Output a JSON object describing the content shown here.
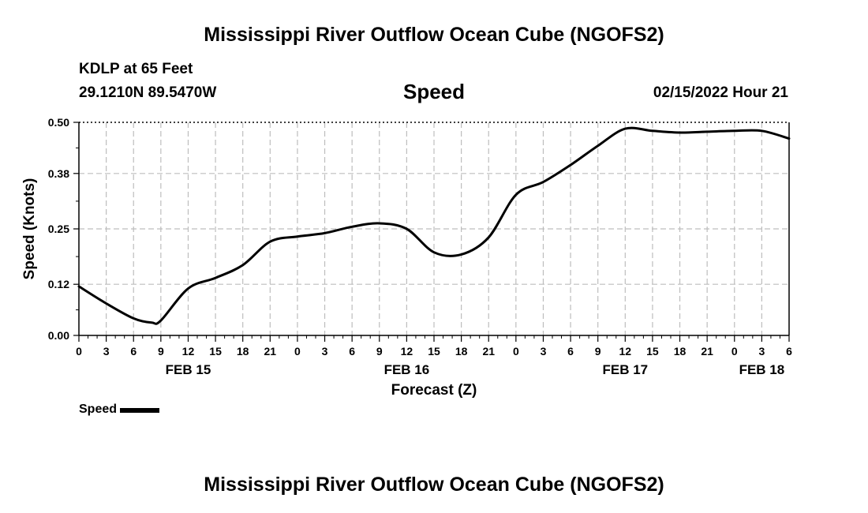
{
  "header": {
    "title": "Mississippi River Outflow Ocean Cube (NGOFS2)",
    "station": "KDLP at 65 Feet",
    "coordinates": "29.1210N  89.5470W",
    "parameter": "Speed",
    "run_time": "02/15/2022 Hour 21"
  },
  "footer": {
    "title": "Mississippi River Outflow Ocean Cube (NGOFS2)"
  },
  "legend": {
    "label": "Speed"
  },
  "chart_data": {
    "type": "line",
    "title": "Speed",
    "xlabel": "Forecast (Z)",
    "ylabel": "Speed (Knots)",
    "xlim": [
      0,
      78
    ],
    "ylim": [
      0.0,
      0.5
    ],
    "grid": true,
    "y_ticks": [
      0.0,
      0.12,
      0.25,
      0.38,
      0.5
    ],
    "y_tick_labels": [
      "0.00",
      "0.12",
      "0.25",
      "0.38",
      "0.50"
    ],
    "x_ticks": [
      0,
      3,
      6,
      9,
      12,
      15,
      18,
      21,
      24,
      27,
      30,
      33,
      36,
      39,
      42,
      45,
      48,
      51,
      54,
      57,
      60,
      63,
      66,
      69,
      72,
      75,
      78
    ],
    "x_tick_labels": [
      "0",
      "3",
      "6",
      "9",
      "12",
      "15",
      "18",
      "21",
      "0",
      "3",
      "6",
      "9",
      "12",
      "15",
      "18",
      "21",
      "0",
      "3",
      "6",
      "9",
      "12",
      "15",
      "18",
      "21",
      "0",
      "3",
      "6"
    ],
    "date_labels": [
      {
        "x": 12,
        "label": "FEB 15"
      },
      {
        "x": 36,
        "label": "FEB 16"
      },
      {
        "x": 60,
        "label": "FEB 17"
      },
      {
        "x": 75,
        "label": "FEB 18"
      }
    ],
    "series": [
      {
        "name": "Speed",
        "color": "#000000",
        "x": [
          0,
          3,
          6,
          8,
          9,
          12,
          15,
          18,
          21,
          24,
          27,
          30,
          33,
          36,
          39,
          42,
          45,
          48,
          51,
          54,
          57,
          60,
          63,
          66,
          69,
          72,
          75,
          78
        ],
        "values": [
          0.115,
          0.075,
          0.04,
          0.03,
          0.035,
          0.11,
          0.135,
          0.165,
          0.22,
          0.232,
          0.24,
          0.255,
          0.263,
          0.25,
          0.195,
          0.19,
          0.23,
          0.33,
          0.36,
          0.4,
          0.445,
          0.485,
          0.48,
          0.476,
          0.478,
          0.48,
          0.48,
          0.462
        ]
      }
    ]
  }
}
